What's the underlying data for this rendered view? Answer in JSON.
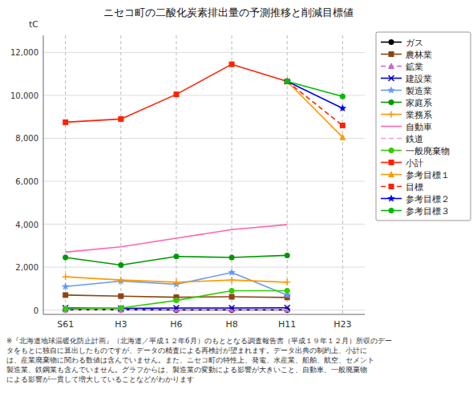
{
  "chart_data": {
    "type": "line",
    "title": "ニセコ町の二酸化炭素排出量の予測推移と削減目標値",
    "y_label": "tC",
    "annotations": [
      "※『北海道地球温暖化防止計画』（北海道／平成１２年6月）のもととなる調査報告書（平成１９年１２月）所収のデー\nタをもとに独自に算出したものですが、データの精査による再検討が望まれます。データ出典の制約上、小計に\nは、産業廃棄物に関わる数値は含んでいません。また、ニセコ町の特性上、発電、水産業、船舶、航空、セメント\n製造業、鉄鋼業も含んでいません。グラフからは、製造業の変動による影響が大きいこと、自動車、一般廃棄物\nによる影響が一貫して増大していることなどがわかります"
    ],
    "categories": [
      "S61",
      "H3",
      "H6",
      "H8",
      "H11",
      "H23"
    ],
    "ylim": [
      -200,
      12800
    ],
    "yticks": [
      0,
      {
        "value": 2000,
        "label": "2,000"
      },
      {
        "value": 4000,
        "label": "4,000"
      },
      {
        "value": 6000,
        "label": "6,000"
      },
      {
        "value": 8000,
        "label": "8,000"
      },
      {
        "value": 10000,
        "label": "10,000"
      },
      {
        "value": 12000,
        "label": "12,000"
      }
    ],
    "grid": true,
    "legend": "right",
    "series": [
      {
        "name": "ガス",
        "color": "#000000",
        "line_style": "solid",
        "marker": "circle",
        "values": [
          20,
          20,
          10,
          10,
          10,
          null
        ]
      },
      {
        "name": "農林業",
        "color": "#8B4513",
        "line_style": "solid",
        "marker": "square",
        "values": [
          700,
          650,
          600,
          620,
          590,
          null
        ]
      },
      {
        "name": "鉱業",
        "color": "#CC66CC",
        "line_style": "dashed",
        "marker": "triangle",
        "values": [
          20,
          20,
          30,
          30,
          30,
          null
        ]
      },
      {
        "name": "建設業",
        "color": "#0000CC",
        "line_style": "solid",
        "marker": "x",
        "values": [
          100,
          80,
          100,
          100,
          110,
          null
        ]
      },
      {
        "name": "製造業",
        "color": "#6699FF",
        "line_style": "solid",
        "marker": "star",
        "values": [
          1100,
          1350,
          1200,
          1750,
          700,
          null
        ]
      },
      {
        "name": "家庭系",
        "color": "#009900",
        "line_style": "solid",
        "marker": "circle",
        "values": [
          2450,
          2100,
          2500,
          2450,
          2550,
          null
        ]
      },
      {
        "name": "業務系",
        "color": "#FF9900",
        "line_style": "solid",
        "marker": "plus",
        "values": [
          1550,
          1400,
          1300,
          1400,
          1300,
          null
        ]
      },
      {
        "name": "自動車",
        "color": "#FF66AA",
        "line_style": "solid",
        "marker": "none",
        "values": [
          2700,
          2950,
          3350,
          3750,
          3980,
          null
        ]
      },
      {
        "name": "鉄道",
        "color": "#FF99CC",
        "line_style": "dashed",
        "marker": "none",
        "values": [
          30,
          30,
          20,
          20,
          20,
          null
        ]
      },
      {
        "name": "一般廃棄物",
        "color": "#33CC00",
        "line_style": "solid",
        "marker": "circle",
        "values": [
          50,
          100,
          450,
          900,
          900,
          null
        ]
      },
      {
        "name": "小計",
        "color": "#FF2200",
        "line_style": "solid",
        "marker": "square",
        "values": [
          8750,
          8900,
          10050,
          11450,
          10650,
          null
        ]
      },
      {
        "name": "参考目標１",
        "color": "#FF9900",
        "line_style": "solid",
        "marker": "triangle",
        "values": [
          null,
          null,
          null,
          null,
          10650,
          8050
        ]
      },
      {
        "name": "目標",
        "color": "#FF2200",
        "line_style": "dashed",
        "marker": "square",
        "values": [
          null,
          null,
          null,
          null,
          10650,
          8600
        ]
      },
      {
        "name": "参考目標２",
        "color": "#0000FF",
        "line_style": "solid",
        "marker": "star",
        "values": [
          null,
          null,
          null,
          null,
          10650,
          9400
        ]
      },
      {
        "name": "参考目標３",
        "color": "#00BB00",
        "line_style": "solid",
        "marker": "circle",
        "values": [
          null,
          null,
          null,
          null,
          10650,
          9950
        ]
      }
    ]
  }
}
